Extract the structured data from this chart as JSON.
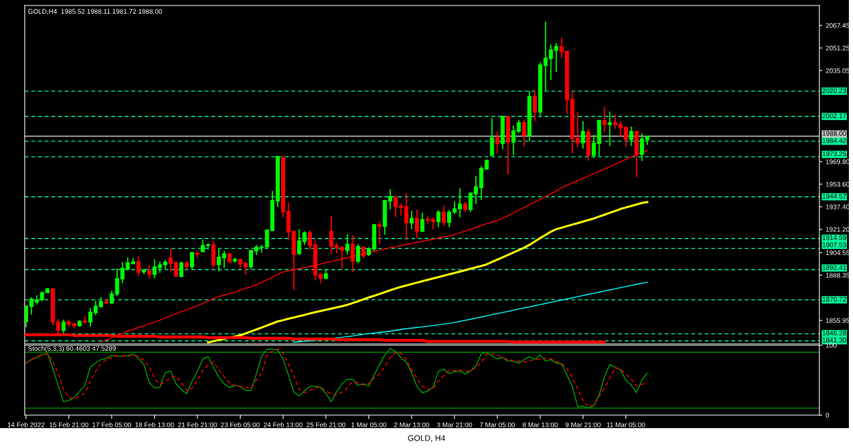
{
  "chart_data": [
    {
      "type": "candlestick",
      "title": "GOLD,H4  1985.52 1988.11 1981.72 1988.00",
      "categories": [
        null,
        null,
        null,
        null,
        null,
        null,
        null,
        null,
        null,
        null,
        null,
        null,
        null,
        null,
        null,
        null,
        null,
        null,
        null,
        null,
        null,
        null,
        null,
        null,
        null,
        null,
        null,
        null,
        null,
        null,
        null,
        null,
        null,
        null,
        null,
        null,
        null,
        null,
        null,
        null,
        null,
        null,
        null,
        null,
        null,
        null,
        null,
        null,
        null,
        null,
        null,
        null,
        null,
        null,
        null,
        null,
        null,
        null,
        null,
        null,
        null,
        null,
        null,
        null,
        null,
        null,
        null,
        null,
        null,
        null,
        null,
        null,
        null,
        null,
        null,
        null,
        null,
        null,
        null,
        null,
        null,
        null,
        null,
        null,
        null,
        null,
        null,
        null,
        null,
        null,
        null,
        null,
        null,
        null,
        null,
        null,
        null,
        null,
        null,
        null,
        null,
        null,
        null,
        null,
        null,
        null,
        null,
        null,
        null,
        null,
        null,
        null,
        null,
        null,
        null,
        null,
        null
      ],
      "ohlc": [
        [
          1855.1,
          1866.6,
          1851.0,
          1866.3
        ],
        [
          1865.9,
          1872.5,
          1860.1,
          1871.2
        ],
        [
          1869.0,
          1874.0,
          1867.4,
          1870.6
        ],
        [
          1870.9,
          1876.6,
          1869.5,
          1875.9
        ],
        [
          1875.8,
          1879.2,
          1875.8,
          1878.6
        ],
        [
          1878.6,
          1879.0,
          1852.4,
          1854.7
        ],
        [
          1854.8,
          1856.9,
          1845.5,
          1848.8
        ],
        [
          1848.8,
          1856.5,
          1846.5,
          1854.8
        ],
        [
          1855.0,
          1856.5,
          1851.0,
          1853.0
        ],
        [
          1853.5,
          1854.3,
          1850.2,
          1852.0
        ],
        [
          1852.0,
          1856.1,
          1851.4,
          1855.3
        ],
        [
          1855.6,
          1859.4,
          1853.7,
          1854.7
        ],
        [
          1854.7,
          1864.8,
          1851.4,
          1861.9
        ],
        [
          1861.5,
          1870.0,
          1859.6,
          1866.1
        ],
        [
          1865.8,
          1872.5,
          1865.1,
          1869.5
        ],
        [
          1869.5,
          1871.5,
          1867.4,
          1868.4
        ],
        [
          1868.4,
          1877.1,
          1867.8,
          1874.9
        ],
        [
          1874.8,
          1893.1,
          1873.3,
          1885.9
        ],
        [
          1885.6,
          1897.7,
          1882.7,
          1893.3
        ],
        [
          1892.6,
          1901.1,
          1892.0,
          1897.2
        ],
        [
          1896.6,
          1900.5,
          1896.2,
          1898.0
        ],
        [
          1898.0,
          1902.0,
          1887.9,
          1890.3
        ],
        [
          1890.7,
          1893.1,
          1889.0,
          1892.0
        ],
        [
          1891.8,
          1895.6,
          1885.9,
          1888.9
        ],
        [
          1888.9,
          1899.7,
          1886.1,
          1894.3
        ],
        [
          1893.8,
          1898.0,
          1890.0,
          1895.7
        ],
        [
          1895.7,
          1899.3,
          1893.0,
          1897.7
        ],
        [
          1900.7,
          1907.4,
          1890.8,
          1896.7
        ],
        [
          1897.2,
          1898.7,
          1887.4,
          1887.6
        ],
        [
          1887.4,
          1898.2,
          1886.9,
          1897.2
        ],
        [
          1897.2,
          1898.7,
          1892.0,
          1894.4
        ],
        [
          1894.4,
          1904.6,
          1892.5,
          1904.6
        ],
        [
          1904.3,
          1905.6,
          1900.8,
          1903.4
        ],
        [
          1905.2,
          1913.9,
          1904.7,
          1909.7
        ],
        [
          1909.7,
          1911.1,
          1906.7,
          1910.2
        ],
        [
          1910.2,
          1912.8,
          1893.5,
          1895.7
        ],
        [
          1895.7,
          1907.0,
          1891.0,
          1901.3
        ],
        [
          1900.8,
          1905.6,
          1893.5,
          1903.6
        ],
        [
          1903.6,
          1904.3,
          1897.4,
          1897.7
        ],
        [
          1898.4,
          1901.1,
          1897.4,
          1899.7
        ],
        [
          1899.7,
          1900.2,
          1892.8,
          1896.4
        ],
        [
          1896.9,
          1898.2,
          1888.9,
          1894.4
        ],
        [
          1894.4,
          1906.1,
          1892.8,
          1906.1
        ],
        [
          1905.7,
          1910.0,
          1902.8,
          1908.5
        ],
        [
          1908.2,
          1910.0,
          1904.3,
          1908.5
        ],
        [
          1908.5,
          1920.8,
          1908.5,
          1920.8
        ],
        [
          1920.3,
          1948.8,
          1920.3,
          1941.9
        ],
        [
          1941.4,
          1973.8,
          1937.2,
          1973.5
        ],
        [
          1973.0,
          1973.0,
          1929.8,
          1933.7
        ],
        [
          1934.1,
          1940.4,
          1913.6,
          1919.3
        ],
        [
          1919.8,
          1919.8,
          1877.7,
          1903.1
        ],
        [
          1903.6,
          1921.3,
          1903.1,
          1912.9
        ],
        [
          1912.4,
          1919.8,
          1910.1,
          1918.8
        ],
        [
          1918.8,
          1920.6,
          1906.5,
          1909.5
        ],
        [
          1910.0,
          1913.4,
          1884.6,
          1888.4
        ],
        [
          1888.9,
          1890.2,
          1882.5,
          1885.9
        ],
        [
          1885.9,
          1892.8,
          1885.9,
          1889.4
        ],
        [
          1919.8,
          1931.1,
          1903.6,
          1909.0
        ],
        [
          1909.5,
          1911.5,
          1904.1,
          1908.0
        ],
        [
          1908.5,
          1909.0,
          1892.8,
          1906.1
        ],
        [
          1906.1,
          1917.8,
          1903.1,
          1910.5
        ],
        [
          1910.5,
          1916.9,
          1890.5,
          1898.2
        ],
        [
          1898.2,
          1910.5,
          1897.2,
          1909.0
        ],
        [
          1908.5,
          1908.5,
          1900.7,
          1902.1
        ],
        [
          1903.1,
          1908.5,
          1902.1,
          1907.5
        ],
        [
          1907.0,
          1924.7,
          1905.6,
          1924.7
        ],
        [
          1924.7,
          1926.7,
          1910.5,
          1923.2
        ],
        [
          1923.2,
          1941.9,
          1917.4,
          1941.9
        ],
        [
          1941.4,
          1949.8,
          1935.5,
          1944.9
        ],
        [
          1944.4,
          1944.4,
          1930.1,
          1937.5
        ],
        [
          1938.0,
          1939.9,
          1931.1,
          1937.0
        ],
        [
          1937.5,
          1947.3,
          1913.4,
          1925.7
        ],
        [
          1925.7,
          1934.5,
          1921.3,
          1929.1
        ],
        [
          1929.1,
          1935.5,
          1914.9,
          1919.8
        ],
        [
          1919.8,
          1933.1,
          1919.3,
          1928.2
        ],
        [
          1928.6,
          1930.6,
          1925.2,
          1927.7
        ],
        [
          1928.2,
          1930.1,
          1921.3,
          1926.7
        ],
        [
          1926.7,
          1935.0,
          1922.8,
          1933.6
        ],
        [
          1933.6,
          1938.5,
          1923.7,
          1926.2
        ],
        [
          1926.2,
          1935.0,
          1922.8,
          1933.6
        ],
        [
          1933.6,
          1941.2,
          1932.2,
          1935.9
        ],
        [
          1935.9,
          1950.7,
          1929.7,
          1939.4
        ],
        [
          1939.4,
          1941.2,
          1933.6,
          1935.4
        ],
        [
          1935.4,
          1947.7,
          1933.6,
          1947.2
        ],
        [
          1946.7,
          1959.5,
          1939.4,
          1951.6
        ],
        [
          1951.1,
          1966.4,
          1942.3,
          1964.9
        ],
        [
          1964.4,
          1970.8,
          1963.9,
          1970.8
        ],
        [
          1974.2,
          2000.8,
          1974.2,
          1987.0
        ],
        [
          1987.0,
          1991.4,
          1975.7,
          1982.6
        ],
        [
          1982.6,
          2002.2,
          1978.7,
          2002.2
        ],
        [
          2002.2,
          2002.2,
          1960.5,
          1983.6
        ],
        [
          1983.6,
          1995.8,
          1974.2,
          1991.9
        ],
        [
          1991.4,
          1999.8,
          1990.4,
          1997.8
        ],
        [
          1997.8,
          1999.8,
          1980.6,
          1988.5
        ],
        [
          1988.5,
          2020.4,
          1984.5,
          2016.5
        ],
        [
          2016.5,
          2020.9,
          1998.8,
          2005.2
        ],
        [
          2005.2,
          2041.0,
          2002.7,
          2039.1
        ],
        [
          2038.6,
          2070.0,
          2020.4,
          2044.0
        ],
        [
          2043.5,
          2053.8,
          2028.3,
          2049.9
        ],
        [
          2049.4,
          2054.8,
          2034.1,
          2052.3
        ],
        [
          2052.3,
          2058.7,
          2044.0,
          2048.4
        ],
        [
          2048.9,
          2049.4,
          2003.7,
          2014.0
        ],
        [
          2014.5,
          2020.9,
          1975.7,
          1986.0
        ],
        [
          1986.5,
          2005.2,
          1980.1,
          1983.1
        ],
        [
          1983.1,
          1998.8,
          1979.1,
          1991.4
        ],
        [
          1990.9,
          1993.4,
          1970.3,
          1974.2
        ],
        [
          1974.2,
          1989.0,
          1972.3,
          1983.1
        ],
        [
          1982.6,
          1999.8,
          1973.7,
          1999.3
        ],
        [
          1999.3,
          2009.1,
          1990.9,
          1996.3
        ],
        [
          1996.3,
          2005.7,
          1981.1,
          1997.8
        ],
        [
          1997.8,
          2003.2,
          1993.4,
          1996.3
        ],
        [
          1996.3,
          1998.8,
          1987.5,
          1993.9
        ],
        [
          1994.4,
          1994.9,
          1980.6,
          1985.5
        ],
        [
          1985.5,
          1994.9,
          1981.1,
          1991.4
        ],
        [
          1991.4,
          1991.9,
          1958.5,
          1974.7
        ],
        [
          1974.9,
          1990.0,
          1970.3,
          1986.0
        ],
        [
          1985.52,
          1988.11,
          1981.72,
          1988.0
        ]
      ],
      "colors": [
        "#00ff00",
        "#00ff00",
        "#00ff00",
        "#00ff00",
        "#00ff00",
        "#ff0000",
        "#ff0000",
        "#00ff00",
        "#ff0000",
        "#ff0000",
        "#00ff00",
        "#ff0000",
        "#00ff00",
        "#00ff00",
        "#00ff00",
        "#ff0000",
        "#00ff00",
        "#00ff00",
        "#00ff00",
        "#00ff00",
        "#00ff00",
        "#ff0000",
        "#00ff00",
        "#ff0000",
        "#00ff00",
        "#00ff00",
        "#00ff00",
        "#ff0000",
        "#ff0000",
        "#00ff00",
        "#ff0000",
        "#00ff00",
        "#ff0000",
        "#00ff00",
        "#00ff00",
        "#ff0000",
        "#00ff00",
        "#00ff00",
        "#ff0000",
        "#00ff00",
        "#ff0000",
        "#ff0000",
        "#00ff00",
        "#00ff00",
        "#00ff00",
        "#00ff00",
        "#00ff00",
        "#00ff00",
        "#ff0000",
        "#ff0000",
        "#ff0000",
        "#00ff00",
        "#00ff00",
        "#ff0000",
        "#ff0000",
        "#ff0000",
        "#00ff00",
        "#ff0000",
        "#ff0000",
        "#ff0000",
        "#00ff00",
        "#ff0000",
        "#00ff00",
        "#ff0000",
        "#00ff00",
        "#00ff00",
        "#ff0000",
        "#00ff00",
        "#00ff00",
        "#ff0000",
        "#ff0000",
        "#ff0000",
        "#00ff00",
        "#ff0000",
        "#00ff00",
        "#ff0000",
        "#ff0000",
        "#00ff00",
        "#ff0000",
        "#00ff00",
        "#00ff00",
        "#00ff00",
        "#ff0000",
        "#00ff00",
        "#00ff00",
        "#00ff00",
        "#00ff00",
        "#00ff00",
        "#ff0000",
        "#00ff00",
        "#ff0000",
        "#00ff00",
        "#00ff00",
        "#ff0000",
        "#00ff00",
        "#ff0000",
        "#00ff00",
        "#00ff00",
        "#00ff00",
        "#00ff00",
        "#ff0000",
        "#ff0000",
        "#ff0000",
        "#ff0000",
        "#00ff00",
        "#ff0000",
        "#00ff00",
        "#00ff00",
        "#ff0000",
        "#00ff00",
        "#ff0000",
        "#ff0000",
        "#ff0000",
        "#00ff00",
        "#ff0000",
        "#00ff00",
        "#00ff00"
      ],
      "series": [
        {
          "type": "line",
          "color": "#ff0000",
          "values": [
            null,
            null,
            null,
            null,
            null,
            null,
            null,
            null,
            null,
            null,
            null,
            null,
            null,
            null,
            1840.5,
            1842.0,
            1843.6,
            1845.1,
            1846.7,
            1848.3,
            1849.6,
            1850.9,
            1852.2,
            1853.5,
            1854.6,
            1856.1,
            1857.7,
            1859.2,
            1860.8,
            1862.2,
            1863.6,
            1865.0,
            1866.4,
            1868.1,
            1869.8,
            1871.5,
            1873.0,
            1874.1,
            1875.1,
            1876.2,
            1877.6,
            1878.9,
            1880.0,
            1881.5,
            1883.3,
            1885.1,
            1886.9,
            1888.8,
            1890.6,
            1891.4,
            1892.2,
            1893.0,
            1893.8,
            1894.6,
            1895.5,
            1896.4,
            1897.3,
            1898.2,
            1899.1,
            1900.0,
            1900.9,
            1901.8,
            1902.7,
            1903.6,
            1904.5,
            1905.4,
            1906.3,
            1907.2,
            1908.0,
            1908.8,
            1909.5,
            1910.3,
            1911.1,
            1911.9,
            1912.6,
            1913.4,
            1914.2,
            1915.0,
            1915.7,
            1916.5,
            1917.5,
            1918.8,
            1920.1,
            1921.3,
            1922.6,
            1923.9,
            1925.2,
            1926.4,
            1927.7,
            1929.0,
            1931.0,
            1932.9,
            1934.9,
            1936.8,
            1938.8,
            1940.7,
            1942.7,
            1944.6,
            1946.6,
            1948.8,
            1951.0,
            1952.8,
            1954.5,
            1956.1,
            1957.8,
            1959.5,
            1961.1,
            1962.8,
            1964.5,
            1966.2,
            1968.0,
            1969.7,
            1971.4,
            1973.1,
            1974.9,
            1976.6,
            1977.5
          ]
        },
        {
          "type": "line",
          "color": "#ffff00",
          "values": [
            null,
            null,
            null,
            null,
            null,
            null,
            null,
            null,
            null,
            null,
            null,
            null,
            null,
            null,
            null,
            null,
            null,
            null,
            null,
            null,
            null,
            null,
            null,
            null,
            null,
            null,
            null,
            null,
            null,
            null,
            null,
            null,
            null,
            null,
            1840.1,
            1841.0,
            1841.9,
            1842.7,
            1843.6,
            1844.4,
            1845.2,
            1846.6,
            1848.0,
            1849.4,
            1850.8,
            1852.3,
            1853.7,
            1855.2,
            1856.1,
            1857.1,
            1858.0,
            1859.0,
            1859.9,
            1860.9,
            1861.8,
            1862.7,
            1863.5,
            1864.4,
            1865.2,
            1866.1,
            1867.1,
            1868.4,
            1869.7,
            1871.0,
            1872.4,
            1873.6,
            1874.9,
            1876.2,
            1877.5,
            1878.8,
            1880.0,
            1881.0,
            1882.0,
            1883.0,
            1884.0,
            1885.0,
            1886.0,
            1887.0,
            1888.0,
            1889.0,
            1889.9,
            1890.9,
            1891.9,
            1893.0,
            1894.0,
            1895.0,
            1896.1,
            1897.8,
            1899.5,
            1901.2,
            1902.9,
            1904.6,
            1906.3,
            1908.0,
            1910.1,
            1912.5,
            1914.9,
            1917.2,
            1919.6,
            1921.3,
            1922.4,
            1923.5,
            1924.6,
            1925.7,
            1926.8,
            1927.9,
            1929.0,
            1930.4,
            1931.7,
            1933.1,
            1934.4,
            1935.8,
            1936.9,
            1937.9,
            1939.0,
            1940.1,
            1940.8
          ]
        },
        {
          "type": "line",
          "color": "#00ffff",
          "values": [
            null,
            null,
            null,
            null,
            null,
            null,
            null,
            null,
            null,
            null,
            null,
            null,
            null,
            null,
            null,
            null,
            null,
            null,
            null,
            null,
            null,
            null,
            null,
            null,
            null,
            null,
            null,
            null,
            null,
            null,
            null,
            null,
            null,
            null,
            null,
            null,
            null,
            null,
            null,
            null,
            null,
            null,
            null,
            null,
            null,
            null,
            null,
            null,
            null,
            null,
            1840.2,
            1840.6,
            1841.0,
            1841.3,
            1841.6,
            1841.9,
            1842.4,
            1842.9,
            1843.4,
            1843.8,
            1844.3,
            1844.8,
            1845.4,
            1845.9,
            1846.5,
            1846.9,
            1847.3,
            1847.7,
            1848.2,
            1848.8,
            1849.4,
            1850.0,
            1850.4,
            1850.9,
            1851.3,
            1851.8,
            1852.2,
            1852.8,
            1853.3,
            1853.8,
            1854.4,
            1855.2,
            1856.0,
            1856.8,
            1857.6,
            1858.4,
            1859.2,
            1860.0,
            1860.8,
            1861.6,
            1862.4,
            1863.2,
            1864.1,
            1864.9,
            1865.7,
            1866.5,
            1867.3,
            1868.1,
            1868.9,
            1869.7,
            1870.5,
            1871.3,
            1872.1,
            1872.9,
            1873.8,
            1874.6,
            1875.4,
            1876.2,
            1877.0,
            1877.8,
            1878.6,
            1879.4,
            1880.2,
            1881.0,
            1881.8,
            1882.6,
            1883.3
          ]
        },
        {
          "type": "line",
          "color": "#ff0000",
          "values": [
            1845.6,
            1845.6,
            1845.6,
            1845.6,
            1845.6,
            1845.6,
            1845.6,
            1845.6,
            1845.6,
            1845.1,
            1845.1,
            1845.1,
            1845.1,
            1845.1,
            1845.1,
            1845.1,
            1845.1,
            1844.6,
            1844.6,
            1844.6,
            1844.6,
            1844.6,
            1844.6,
            1844.6,
            1844.6,
            1844.1,
            1844.1,
            1844.1,
            1844.1,
            1844.1,
            1844.1,
            1844.1,
            1844.1,
            1844.1,
            1843.6,
            1843.6,
            1843.6,
            1843.6,
            1843.6,
            1843.6,
            1843.6,
            1843.6,
            1843.1,
            1843.1,
            1843.1,
            1843.1,
            1843.1,
            1843.1,
            1843.1,
            1843.1,
            1842.6,
            1842.6,
            1842.6,
            1842.6,
            1842.6,
            1842.6,
            1842.6,
            1842.6,
            1842.1,
            1842.1,
            1842.1,
            1842.1,
            1842.1,
            1842.1,
            1842.1,
            1842.1,
            1842.1,
            1841.6,
            1841.6,
            1841.6,
            1841.6,
            1841.6,
            1841.6,
            1841.6,
            1841.6,
            1840.9,
            1840.9,
            1840.9,
            1840.9,
            1840.9,
            1840.9,
            1840.9,
            1840.9,
            1840.9,
            1840.9,
            1840.9,
            1840.9,
            1840.9,
            1840.9,
            1840.9,
            1840.9,
            1840.4,
            1840.4,
            1840.4,
            1840.4,
            1840.4,
            1840.4,
            1840.4,
            1840.4,
            1840.4,
            1840.4,
            1840.4,
            1840.4,
            1840.4,
            1840.4,
            1840.4,
            1840.4,
            1840.4,
            1840.4,
            null,
            null,
            null,
            null,
            null,
            null,
            null,
            null
          ]
        }
      ],
      "ylim": [
        1839.1,
        2081.7
      ],
      "yticks": [
        2067.45,
        2051.25,
        2035.05,
        {
          "value": 1969.8,
          "label": "1969.80"
        },
        {
          "value": 1953.6,
          "label": "1953.60"
        },
        {
          "value": 1937.4,
          "label": "1937.40"
        },
        {
          "value": 1921.2,
          "label": "1921.20"
        },
        1904.55,
        1888.35,
        1855.95
      ],
      "ref_lines": [
        {
          "axis": "y",
          "value": 2020.23,
          "label": "2020.23",
          "color": "#00fa9a",
          "line_style": "dashed"
        },
        {
          "axis": "y",
          "value": 2002.17,
          "label": "2002.17",
          "color": "#00fa9a",
          "line_style": "dashed"
        },
        {
          "axis": "y",
          "value": 1988.0,
          "label": "1988.00",
          "color": "#c0c0c0",
          "line_style": "solid"
        },
        {
          "axis": "y",
          "value": 1984.42,
          "label": "1984.42",
          "color": "#00fa9a",
          "line_style": "dashed"
        },
        {
          "axis": "y",
          "value": 1973.25,
          "label": "1973.25",
          "color": "#00fa9a",
          "line_style": "dashed"
        },
        {
          "axis": "y",
          "value": 1944.57,
          "label": "1944.57",
          "color": "#00fa9a",
          "line_style": "dashed"
        },
        {
          "axis": "y",
          "value": 1914.59,
          "label": "1914.59",
          "color": "#00fa9a",
          "line_style": "dashed"
        },
        {
          "axis": "y",
          "value": 1907.53,
          "label": "1907.53",
          "color": "#00fa9a",
          "line_style": "dashed"
        },
        {
          "axis": "y",
          "value": 1892.41,
          "label": "1892.41",
          "color": "#00fa9a",
          "line_style": "dashed"
        },
        {
          "axis": "y",
          "value": 1870.72,
          "label": "1870.72",
          "color": "#00fa9a",
          "line_style": "dashed"
        },
        {
          "axis": "y",
          "value": 1846.28,
          "label": "1846.28",
          "color": "#00fa9a",
          "line_style": "dashed"
        },
        {
          "axis": "y",
          "value": 1841.3,
          "label": "1841.30",
          "color": "#00fa9a",
          "line_style": "dashed"
        }
      ],
      "tick_labels": "y"
    },
    {
      "type": "line",
      "title": "Stoch(5,3,3) 60.4603 47.5289",
      "categories": [
        "14 Feb 2022",
        null,
        null,
        null,
        null,
        null,
        null,
        null,
        "15 Feb 21:00",
        null,
        null,
        null,
        null,
        null,
        null,
        null,
        "17 Feb 05:00",
        null,
        null,
        null,
        null,
        null,
        null,
        null,
        "18 Feb 13:00",
        null,
        null,
        null,
        null,
        null,
        null,
        null,
        "21 Feb 21:00",
        null,
        null,
        null,
        null,
        null,
        null,
        null,
        "23 Feb 05:00",
        null,
        null,
        null,
        null,
        null,
        null,
        null,
        "24 Feb 13:00",
        null,
        null,
        null,
        null,
        null,
        null,
        null,
        "25 Feb 21:00",
        null,
        null,
        null,
        null,
        null,
        null,
        null,
        "1 Mar 05:00",
        null,
        null,
        null,
        null,
        null,
        null,
        null,
        "2 Mar 13:00",
        null,
        null,
        null,
        null,
        null,
        null,
        null,
        "3 Mar 21:00",
        null,
        null,
        null,
        null,
        null,
        null,
        null,
        "7 Mar 05:00",
        null,
        null,
        null,
        null,
        null,
        null,
        null,
        "8 Mar 13:00",
        null,
        null,
        null,
        null,
        null,
        null,
        null,
        "9 Mar 21:00",
        null,
        null,
        null,
        null,
        null,
        null,
        null,
        "11 Mar 05:00",
        null,
        null,
        null,
        null
      ],
      "series": [
        {
          "type": "line",
          "color": "#00a000",
          "line_style": "solid",
          "values": [
            74.5,
            79.6,
            82.4,
            86.4,
            88.4,
            66.6,
            42.8,
            19.1,
            21.0,
            25.0,
            33.7,
            42.8,
            68.6,
            74.5,
            79.6,
            81.2,
            85.6,
            84.4,
            84.4,
            85.2,
            87.6,
            81.2,
            72.5,
            46.8,
            38.9,
            40.0,
            60.6,
            63.0,
            44.8,
            36.9,
            30.6,
            48.8,
            62.6,
            80.4,
            83.6,
            68.6,
            54.7,
            44.8,
            39.7,
            42.8,
            40.8,
            35.3,
            34.9,
            58.7,
            84.4,
            94.3,
            94.3,
            93.1,
            80.4,
            57.5,
            32.9,
            27.4,
            34.9,
            40.8,
            41.6,
            39.7,
            30.9,
            19.1,
            33.7,
            44.8,
            51.5,
            50.7,
            42.8,
            44.8,
            41.6,
            57.5,
            72.5,
            86.4,
            95.5,
            91.1,
            82.4,
            75.7,
            60.6,
            40.8,
            32.1,
            34.5,
            40.0,
            62.6,
            65.8,
            59.4,
            62.2,
            63.4,
            58.7,
            63.4,
            70.5,
            87.6,
            90.0,
            84.4,
            80.4,
            82.4,
            77.3,
            77.3,
            74.1,
            79.6,
            83.6,
            79.6,
            86.4,
            77.3,
            79.3,
            74.5,
            73.3,
            57.5,
            40.8,
            11.9,
            12.7,
            10.4,
            13.1,
            29.0,
            54.7,
            72.5,
            68.6,
            64.6,
            50.0,
            42.8,
            32.1,
            50.7,
            60.5
          ]
        },
        {
          "type": "line",
          "color": "#ff0000",
          "line_style": "dashed",
          "values": [
            74.5,
            79.6,
            83.6,
            86.4,
            87.6,
            76.5,
            60.6,
            36.9,
            25.0,
            23.0,
            27.0,
            31.7,
            48.8,
            62.6,
            74.5,
            78.9,
            82.4,
            84.8,
            84.8,
            84.4,
            86.0,
            83.6,
            78.5,
            68.6,
            52.7,
            44.0,
            47.6,
            53.5,
            55.9,
            46.8,
            34.9,
            38.9,
            49.6,
            64.6,
            71.7,
            76.5,
            64.6,
            54.7,
            45.6,
            42.4,
            40.8,
            39.7,
            38.9,
            50.7,
            60.6,
            86.4,
            91.5,
            94.7,
            88.4,
            72.5,
            55.9,
            36.9,
            32.1,
            35.7,
            38.9,
            40.0,
            34.9,
            29.8,
            29.0,
            32.9,
            38.9,
            48.0,
            46.0,
            43.6,
            44.8,
            53.5,
            58.7,
            69.4,
            82.4,
            89.5,
            88.4,
            79.6,
            64.6,
            52.7,
            41.6,
            36.9,
            37.7,
            48.8,
            56.7,
            63.4,
            63.8,
            64.2,
            62.6,
            63.8,
            67.8,
            75.3,
            87.6,
            87.6,
            85.6,
            82.4,
            79.3,
            77.7,
            77.3,
            75.7,
            78.1,
            79.3,
            80.4,
            81.2,
            80.4,
            76.5,
            74.1,
            66.6,
            53.5,
            37.7,
            21.0,
            12.3,
            13.9,
            27.0,
            38.9,
            52.7,
            67.8,
            65.8,
            58.7,
            51.5,
            41.6,
            44.0,
            47.5
          ]
        }
      ],
      "ylim": [
        0,
        100
      ],
      "yticks": [
        100,
        0
      ],
      "ref_lines": [
        {
          "axis": "y",
          "value": 90,
          "color": "#008000",
          "line_style": "solid"
        },
        {
          "axis": "y",
          "value": 10,
          "color": "#008000",
          "line_style": "solid"
        }
      ],
      "annotations": [
        "GOLD, H4"
      ]
    }
  ]
}
